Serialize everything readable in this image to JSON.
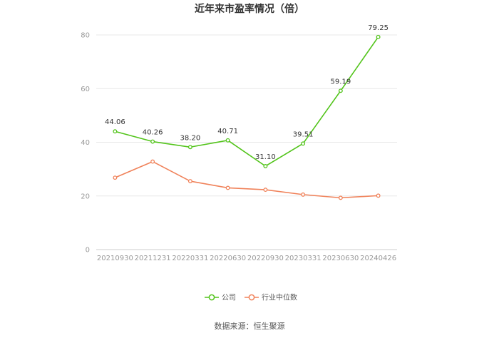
{
  "chart_data": {
    "type": "line",
    "title": "近年来市盈率情况（倍）",
    "xlabel": "",
    "ylabel": "",
    "categories": [
      "20210930",
      "20211231",
      "20220331",
      "20220630",
      "20220930",
      "20230331",
      "20230630",
      "20240426"
    ],
    "ylim": [
      0,
      80
    ],
    "yticks": [
      0,
      20,
      40,
      60,
      80
    ],
    "grid": true,
    "legend_position": "bottom",
    "series": [
      {
        "name": "公司",
        "color": "#52c41a",
        "values": [
          44.06,
          40.26,
          38.2,
          40.71,
          31.1,
          39.51,
          59.19,
          79.25
        ],
        "labels": [
          "44.06",
          "40.26",
          "38.20",
          "40.71",
          "31.10",
          "39.51",
          "59.19",
          "79.25"
        ]
      },
      {
        "name": "行业中位数",
        "color": "#f0825a",
        "values": [
          26.8,
          32.8,
          25.5,
          23.0,
          22.3,
          20.5,
          19.3,
          20.1
        ]
      }
    ],
    "source": "数据来源：恒生聚源"
  }
}
